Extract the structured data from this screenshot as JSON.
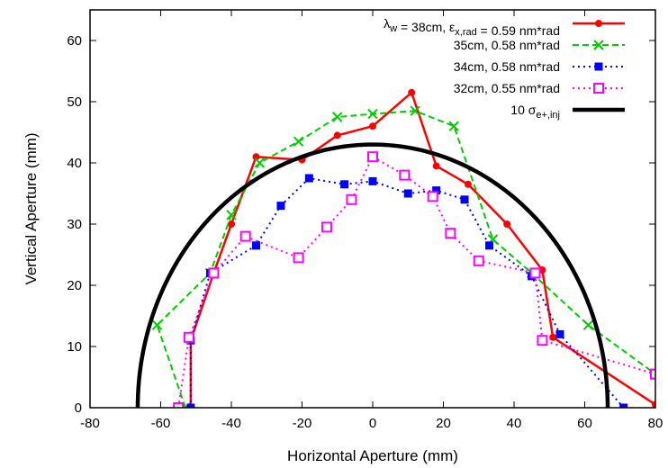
{
  "chart_data": {
    "type": "line",
    "xlabel": "Horizontal Aperture (mm)",
    "ylabel": "Vertical Aperture (mm)",
    "xlim": [
      -80,
      80
    ],
    "ylim": [
      0,
      65
    ],
    "x_ticks": [
      -80,
      -60,
      -40,
      -20,
      0,
      20,
      40,
      60,
      80
    ],
    "y_ticks": [
      0,
      10,
      20,
      30,
      40,
      50,
      60
    ],
    "grid": false,
    "legend_position": "top-right",
    "series": [
      {
        "name": "λw = 38cm, εx,rad = 0.59 nm*rad",
        "color": "#ff0000",
        "style": "solid",
        "marker": "dot",
        "points": [
          [
            -51.5,
            0
          ],
          [
            -51.5,
            11
          ],
          [
            -45,
            22
          ],
          [
            -40,
            30
          ],
          [
            -33,
            41
          ],
          [
            -20,
            40.5
          ],
          [
            -10,
            44.5
          ],
          [
            0,
            46
          ],
          [
            11,
            51.5
          ],
          [
            18,
            39.5
          ],
          [
            27,
            36.5
          ],
          [
            38,
            30
          ],
          [
            48,
            22.5
          ],
          [
            51,
            11.5
          ],
          [
            80,
            0.5
          ]
        ]
      },
      {
        "name": "35cm, 0.58 nm*rad",
        "color": "#00cc00",
        "style": "dashed",
        "marker": "x",
        "points": [
          [
            -53,
            0
          ],
          [
            -61,
            13.5
          ],
          [
            -46,
            22
          ],
          [
            -40,
            31.5
          ],
          [
            -32,
            40
          ],
          [
            -21,
            43.5
          ],
          [
            -10,
            47.5
          ],
          [
            0,
            48
          ],
          [
            12,
            48.5
          ],
          [
            23,
            46
          ],
          [
            34,
            27.5
          ],
          [
            45,
            22
          ],
          [
            61,
            13.5
          ],
          [
            80,
            5.5
          ]
        ]
      },
      {
        "name": "34cm, 0.58 nm*rad",
        "color": "#0000ff",
        "style": "dotted",
        "marker": "filled-square",
        "points": [
          [
            -51.5,
            0
          ],
          [
            -51.5,
            11
          ],
          [
            -46,
            22
          ],
          [
            -33,
            26.5
          ],
          [
            -26,
            33
          ],
          [
            -18,
            37.5
          ],
          [
            -8,
            36.5
          ],
          [
            0,
            37
          ],
          [
            10,
            35
          ],
          [
            18,
            35.5
          ],
          [
            26,
            34
          ],
          [
            33,
            26.5
          ],
          [
            45,
            21.5
          ],
          [
            53,
            12
          ],
          [
            71,
            0
          ]
        ]
      },
      {
        "name": "32cm, 0.55 nm*rad",
        "color": "#ff00ff",
        "style": "dotted",
        "marker": "open-square",
        "points": [
          [
            -55,
            0
          ],
          [
            -52,
            11.5
          ],
          [
            -45,
            22
          ],
          [
            -36,
            28
          ],
          [
            -21,
            24.5
          ],
          [
            -13,
            29.5
          ],
          [
            -6,
            34
          ],
          [
            0,
            41
          ],
          [
            9,
            38
          ],
          [
            17,
            34.5
          ],
          [
            22,
            28.5
          ],
          [
            30,
            24
          ],
          [
            46,
            22
          ],
          [
            48,
            11
          ],
          [
            80,
            5.5
          ]
        ]
      },
      {
        "name": "10 σe+,inj",
        "color": "#000000",
        "style": "thick-solid",
        "marker": "none",
        "shape": "half-ellipse",
        "center_x": 0,
        "semi_axis_x": 66.5,
        "semi_axis_y": 43
      }
    ]
  }
}
